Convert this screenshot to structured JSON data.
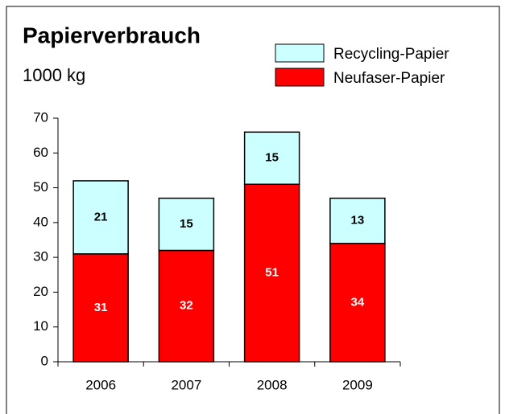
{
  "chart_data": {
    "type": "stacked_bar",
    "title": "Papierverbrauch",
    "subtitle": "1000 kg",
    "categories": [
      "2006",
      "2007",
      "2008",
      "2009"
    ],
    "series": [
      {
        "name": "Neufaser-Papier",
        "color": "#ff0000",
        "label_color": "#ffffff",
        "values": [
          31,
          32,
          51,
          34
        ]
      },
      {
        "name": "Recycling-Papier",
        "color": "#ccffff",
        "label_color": "#000000",
        "values": [
          21,
          15,
          15,
          13
        ]
      }
    ],
    "ylim": [
      0,
      70
    ],
    "yticks": [
      0,
      10,
      20,
      30,
      40,
      50,
      60,
      70
    ],
    "grid": false,
    "legend": "top-right"
  }
}
